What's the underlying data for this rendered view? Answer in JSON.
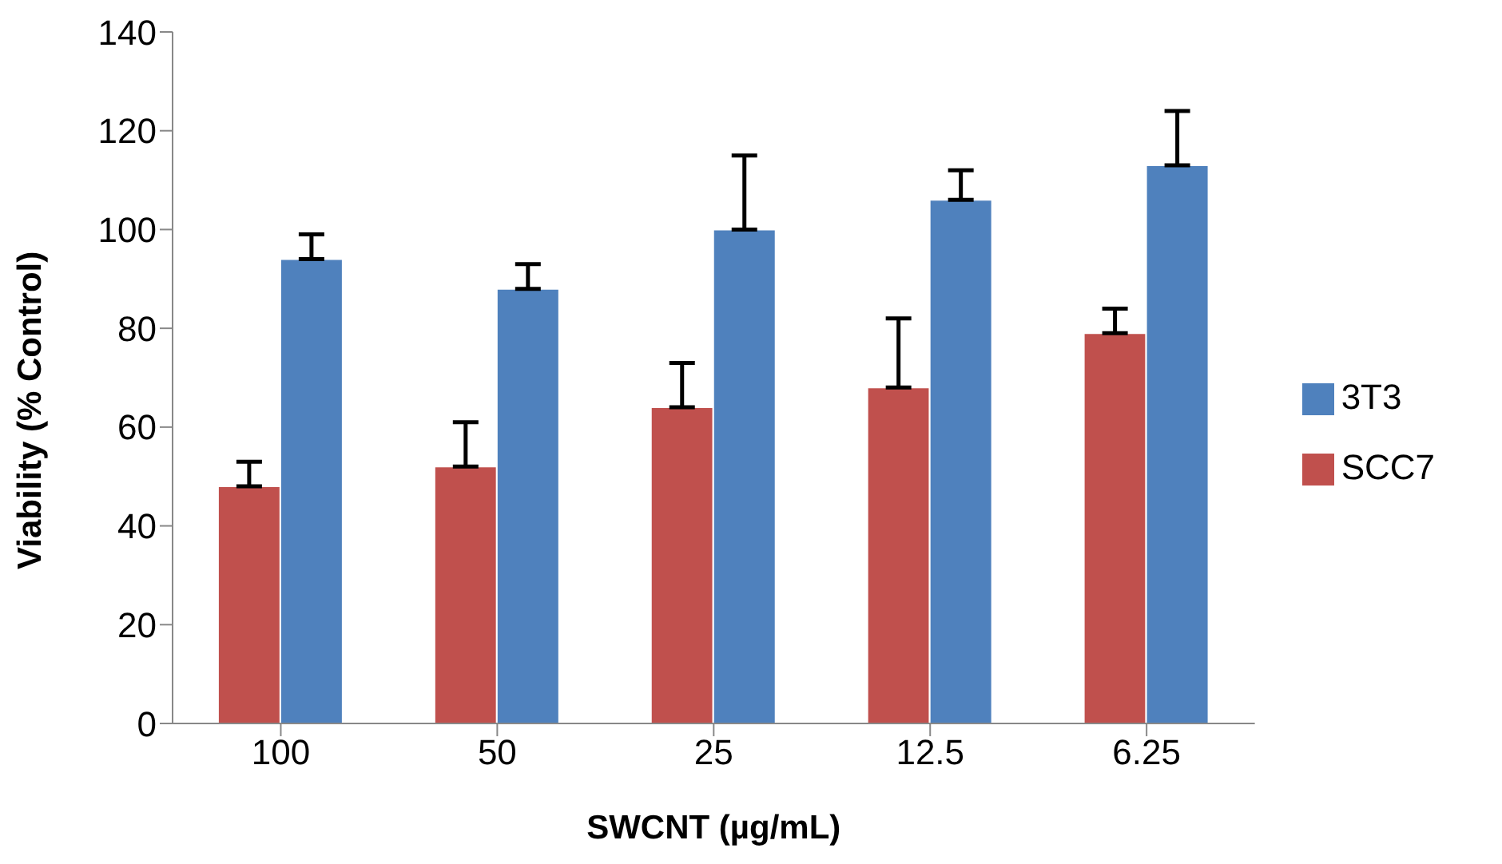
{
  "chart_data": {
    "type": "bar",
    "xlabel": "SWCNT (µg/mL)",
    "ylabel": "Viability (% Control)",
    "categories": [
      "100",
      "50",
      "25",
      "12.5",
      "6.25"
    ],
    "series": [
      {
        "name": "SCC7",
        "color": "#c0504d",
        "values": [
          48,
          52,
          64,
          68,
          79
        ],
        "errors": [
          [
            48,
            53
          ],
          [
            52,
            61
          ],
          [
            64,
            73
          ],
          [
            68,
            82
          ],
          [
            79,
            84
          ]
        ]
      },
      {
        "name": "3T3",
        "color": "#4f81bd",
        "values": [
          94,
          88,
          100,
          106,
          113
        ],
        "errors": [
          [
            94,
            99
          ],
          [
            88,
            93
          ],
          [
            100,
            115
          ],
          [
            106,
            112
          ],
          [
            113,
            124
          ]
        ]
      }
    ],
    "ylim": [
      0,
      140
    ],
    "yticks": [
      0,
      20,
      40,
      60,
      80,
      100,
      120,
      140
    ],
    "grid": false,
    "legend": "right"
  }
}
